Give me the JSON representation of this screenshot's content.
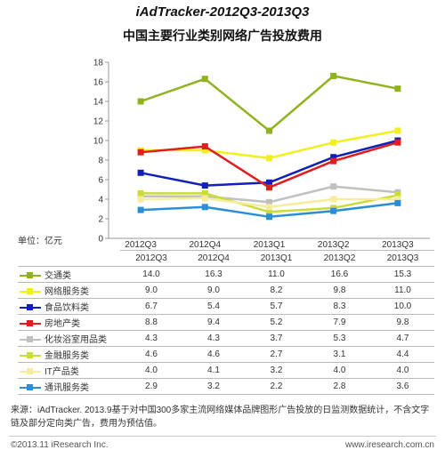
{
  "chart_data": {
    "type": "line",
    "title": "iAdTracker-2012Q3-2013Q3",
    "subtitle": "中国主要行业类别网络广告投放费用",
    "unit_label": "单位：亿元",
    "categories": [
      "2012Q3",
      "2012Q4",
      "2013Q1",
      "2013Q2",
      "2013Q3"
    ],
    "ylim": [
      0,
      18
    ],
    "yticks": [
      "0",
      "2",
      "4",
      "6",
      "8",
      "10",
      "12",
      "14",
      "16",
      "18"
    ],
    "grid": false,
    "series": [
      {
        "name": "交通类",
        "values": [
          14.0,
          16.3,
          11.0,
          16.6,
          15.3
        ],
        "display": [
          "14.0",
          "16.3",
          "11.0",
          "16.6",
          "15.3"
        ],
        "color": "#8fb21e"
      },
      {
        "name": "网络服务类",
        "values": [
          9.0,
          9.0,
          8.2,
          9.8,
          11.0
        ],
        "display": [
          "9.0",
          "9.0",
          "8.2",
          "9.8",
          "11.0"
        ],
        "color": "#f2ef1e"
      },
      {
        "name": "食品饮料类",
        "values": [
          6.7,
          5.4,
          5.7,
          8.3,
          10.0
        ],
        "display": [
          "6.7",
          "5.4",
          "5.7",
          "8.3",
          "10.0"
        ],
        "color": "#1020b8"
      },
      {
        "name": "房地产类",
        "values": [
          8.8,
          9.4,
          5.2,
          7.9,
          9.8
        ],
        "display": [
          "8.8",
          "9.4",
          "5.2",
          "7.9",
          "9.8"
        ],
        "color": "#e01e1e"
      },
      {
        "name": "化妆浴室用品类",
        "values": [
          4.3,
          4.3,
          3.7,
          5.3,
          4.7
        ],
        "display": [
          "4.3",
          "4.3",
          "3.7",
          "5.3",
          "4.7"
        ],
        "color": "#c0c0c0"
      },
      {
        "name": "金融服务类",
        "values": [
          4.6,
          4.6,
          2.7,
          3.1,
          4.4
        ],
        "display": [
          "4.6",
          "4.6",
          "2.7",
          "3.1",
          "4.4"
        ],
        "color": "#c9dc3a"
      },
      {
        "name": "IT产品类",
        "values": [
          4.0,
          4.1,
          3.2,
          4.0,
          4.0
        ],
        "display": [
          "4.0",
          "4.1",
          "3.2",
          "4.0",
          "4.0"
        ],
        "color": "#f7ec9c"
      },
      {
        "name": "通讯服务类",
        "values": [
          2.9,
          3.2,
          2.2,
          2.8,
          3.6
        ],
        "display": [
          "2.9",
          "3.2",
          "2.2",
          "2.8",
          "3.6"
        ],
        "color": "#2c8ed6"
      }
    ]
  },
  "source_text": "来源：iAdTracker. 2013.9基于对中国300多家主流网络媒体品牌图形广告投放的日监测数据统计，不含文字链及部分定向类广告，费用为预估值。",
  "copyright": "©2013.11 iResearch Inc.",
  "website": "www.iresearch.com.cn"
}
